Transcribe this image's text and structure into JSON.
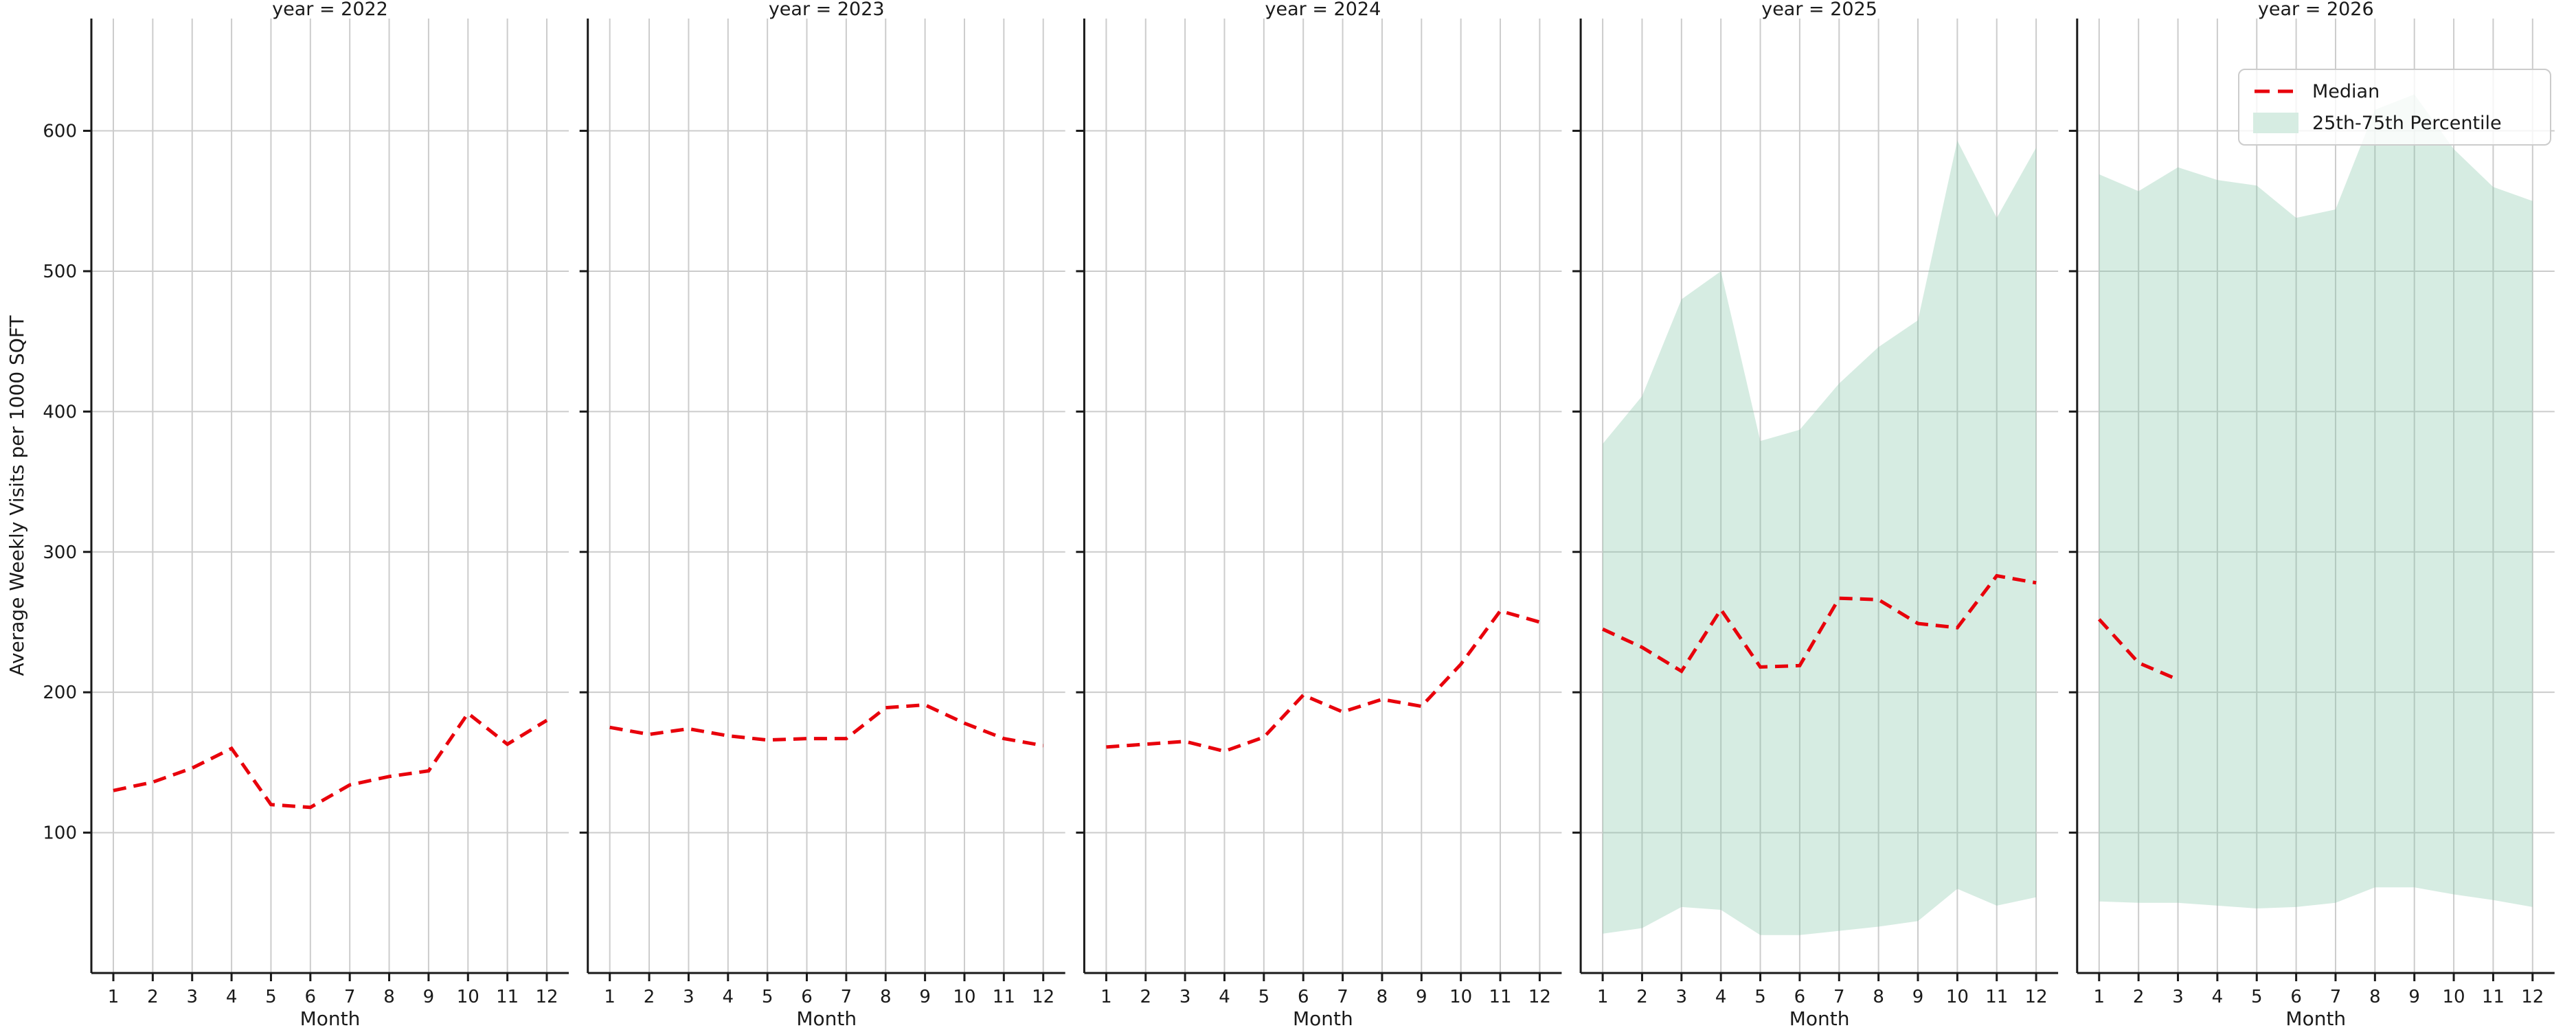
{
  "figure": {
    "background": "#ffffff"
  },
  "legend": {
    "items": [
      {
        "label": "Median",
        "swatch": "dashed-line",
        "color": "#e8000b"
      },
      {
        "label": "25th-75th Percentile",
        "swatch": "filled-patch",
        "color": "#d6ece2"
      }
    ]
  },
  "chart_data": {
    "type": "line",
    "facet_variable": "year",
    "ylabel": "Average Weekly Visits per 1000 SQFT",
    "xlabel": "Month",
    "x": [
      1,
      2,
      3,
      4,
      5,
      6,
      7,
      8,
      9,
      10,
      11,
      12
    ],
    "xtick_labels": [
      "1",
      "2",
      "3",
      "4",
      "5",
      "6",
      "7",
      "8",
      "9",
      "10",
      "11",
      "12"
    ],
    "yticks": [
      100,
      200,
      300,
      400,
      500,
      600
    ],
    "ylim": [
      0,
      680
    ],
    "grid": true,
    "legend_position": "upper-right-last-facet",
    "colors": {
      "median_line": "#e8000b",
      "band_fill": "#7fc5a5",
      "band_opacity": 0.32,
      "gridline": "#cccccc",
      "spine": "#1a1a1a",
      "text": "#1a1a1a"
    },
    "facets": [
      {
        "title": "year = 2022",
        "year": 2022,
        "median": [
          130,
          136,
          146,
          160,
          120,
          118,
          134,
          140,
          144,
          185,
          163,
          180
        ],
        "p25": null,
        "p75": null
      },
      {
        "title": "year = 2023",
        "year": 2023,
        "median": [
          175,
          170,
          174,
          169,
          166,
          167,
          167,
          189,
          191,
          178,
          167,
          162
        ],
        "p25": null,
        "p75": null
      },
      {
        "title": "year = 2024",
        "year": 2024,
        "median": [
          161,
          163,
          165,
          158,
          168,
          198,
          186,
          195,
          190,
          220,
          258,
          250
        ],
        "p25": null,
        "p75": null
      },
      {
        "title": "year = 2025",
        "year": 2025,
        "median": [
          245,
          232,
          215,
          259,
          218,
          219,
          267,
          266,
          249,
          246,
          283,
          278
        ],
        "p25": [
          28,
          32,
          47,
          45,
          27,
          27,
          30,
          33,
          37,
          60,
          48,
          54
        ],
        "p75": [
          377,
          411,
          480,
          500,
          379,
          387,
          420,
          446,
          465,
          593,
          538,
          588
        ]
      },
      {
        "title": "year = 2026",
        "year": 2026,
        "median": [
          252,
          221,
          209
        ],
        "p25": [
          51,
          50,
          50,
          48,
          46,
          47,
          50,
          61,
          61,
          56,
          52,
          47
        ],
        "p75": [
          569,
          557,
          574,
          565,
          561,
          538,
          544,
          615,
          626,
          587,
          560,
          550
        ]
      }
    ]
  }
}
